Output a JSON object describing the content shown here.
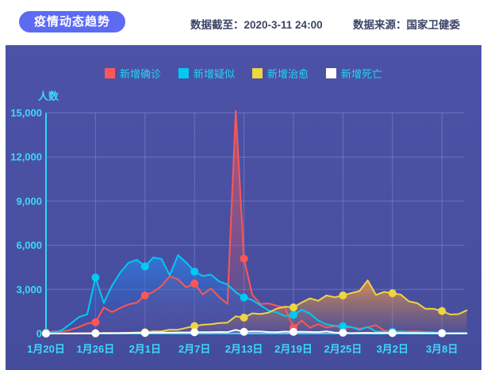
{
  "header": {
    "title": "疫情动态趋势",
    "data_as_of": "数据截至：2020-3-11 24:00",
    "data_source": "数据来源：国家卫健委"
  },
  "colors": {
    "accent_pill": "#5d6bf3",
    "panel_background": "#4a51a2",
    "axis_cyan": "#2bd9ff",
    "tick_text": "#3cd9f8",
    "legend_text": "#1fd7f5"
  },
  "chart_data": {
    "type": "area",
    "title": "疫情动态趋势",
    "ylabel": "人数",
    "xlabel": "",
    "ylim": [
      0,
      15000
    ],
    "grid": true,
    "legend_position": "top",
    "x_start": "1月20日",
    "x_end": "3月11日",
    "x_tick_labels": [
      "1月20日",
      "1月26日",
      "2月1日",
      "2月7日",
      "2月13日",
      "2月19日",
      "2月25日",
      "3月2日",
      "3月8日"
    ],
    "y_ticks": [
      0,
      3000,
      6000,
      9000,
      12000,
      15000
    ],
    "y_tick_labels": [
      "0",
      "3,000",
      "6,000",
      "9,000",
      "12,000",
      "15,000"
    ],
    "marker_every": 6,
    "series": [
      {
        "key": "confirmed",
        "name": "新增确诊",
        "color": "#fb5756",
        "fill_from": "rgba(251,88,86,0.60)",
        "fill_to": "rgba(251,88,86,0.04)",
        "values": [
          77,
          149,
          131,
          259,
          444,
          688,
          769,
          1771,
          1459,
          1737,
          1982,
          2102,
          2590,
          2829,
          3235,
          3887,
          3694,
          3143,
          3399,
          2656,
          3062,
          2478,
          2015,
          15152,
          5090,
          2641,
          2009,
          2048,
          1886,
          1749,
          394,
          889,
          397,
          648,
          409,
          508,
          406,
          433,
          327,
          427,
          573,
          202,
          125,
          119,
          139,
          143,
          99,
          44,
          40,
          19,
          24,
          15
        ]
      },
      {
        "key": "suspected",
        "name": "新增疑似",
        "color": "#00c9f2",
        "fill_from": "rgba(45,135,235,0.72)",
        "fill_to": "rgba(40,80,190,0.10)",
        "values": [
          54,
          37,
          257,
          680,
          1118,
          1309,
          3806,
          2077,
          3248,
          4148,
          4812,
          5019,
          4562,
          5173,
          5072,
          3971,
          5328,
          4833,
          4214,
          3916,
          4008,
          3536,
          3342,
          2807,
          2450,
          2277,
          1918,
          1563,
          1432,
          1185,
          1277,
          1614,
          1361,
          882,
          620,
          530,
          508,
          452,
          248,
          452,
          141,
          129,
          129,
          143,
          102,
          102,
          99,
          84,
          42,
          31,
          31,
          33
        ]
      },
      {
        "key": "cured",
        "name": "新增治愈",
        "color": "#eed542",
        "fill_from": "rgba(244,158,68,0.80)",
        "fill_to": "rgba(195,125,80,0.08)",
        "values": [
          0,
          0,
          0,
          6,
          3,
          11,
          9,
          38,
          43,
          21,
          47,
          72,
          85,
          147,
          157,
          262,
          261,
          387,
          510,
          600,
          632,
          716,
          744,
          1171,
          1081,
          1373,
          1323,
          1425,
          1701,
          1824,
          1779,
          2109,
          2393,
          2230,
          2589,
          2467,
          2589,
          2750,
          2885,
          3622,
          2623,
          2837,
          2742,
          2652,
          2189,
          2068,
          1681,
          1678,
          1535,
          1297,
          1318,
          1578
        ]
      },
      {
        "key": "deaths",
        "name": "新增死亡",
        "color": "#ffffff",
        "fill_from": "rgba(255,255,255,0.30)",
        "fill_to": "rgba(255,255,255,0.00)",
        "values": [
          2,
          3,
          8,
          8,
          16,
          15,
          24,
          26,
          26,
          38,
          43,
          46,
          45,
          57,
          64,
          65,
          73,
          73,
          86,
          89,
          97,
          108,
          97,
          254,
          121,
          143,
          142,
          105,
          98,
          136,
          114,
          118,
          109,
          97,
          150,
          71,
          52,
          29,
          44,
          47,
          35,
          42,
          31,
          38,
          31,
          30,
          28,
          27,
          22,
          17,
          22,
          11
        ]
      }
    ]
  }
}
